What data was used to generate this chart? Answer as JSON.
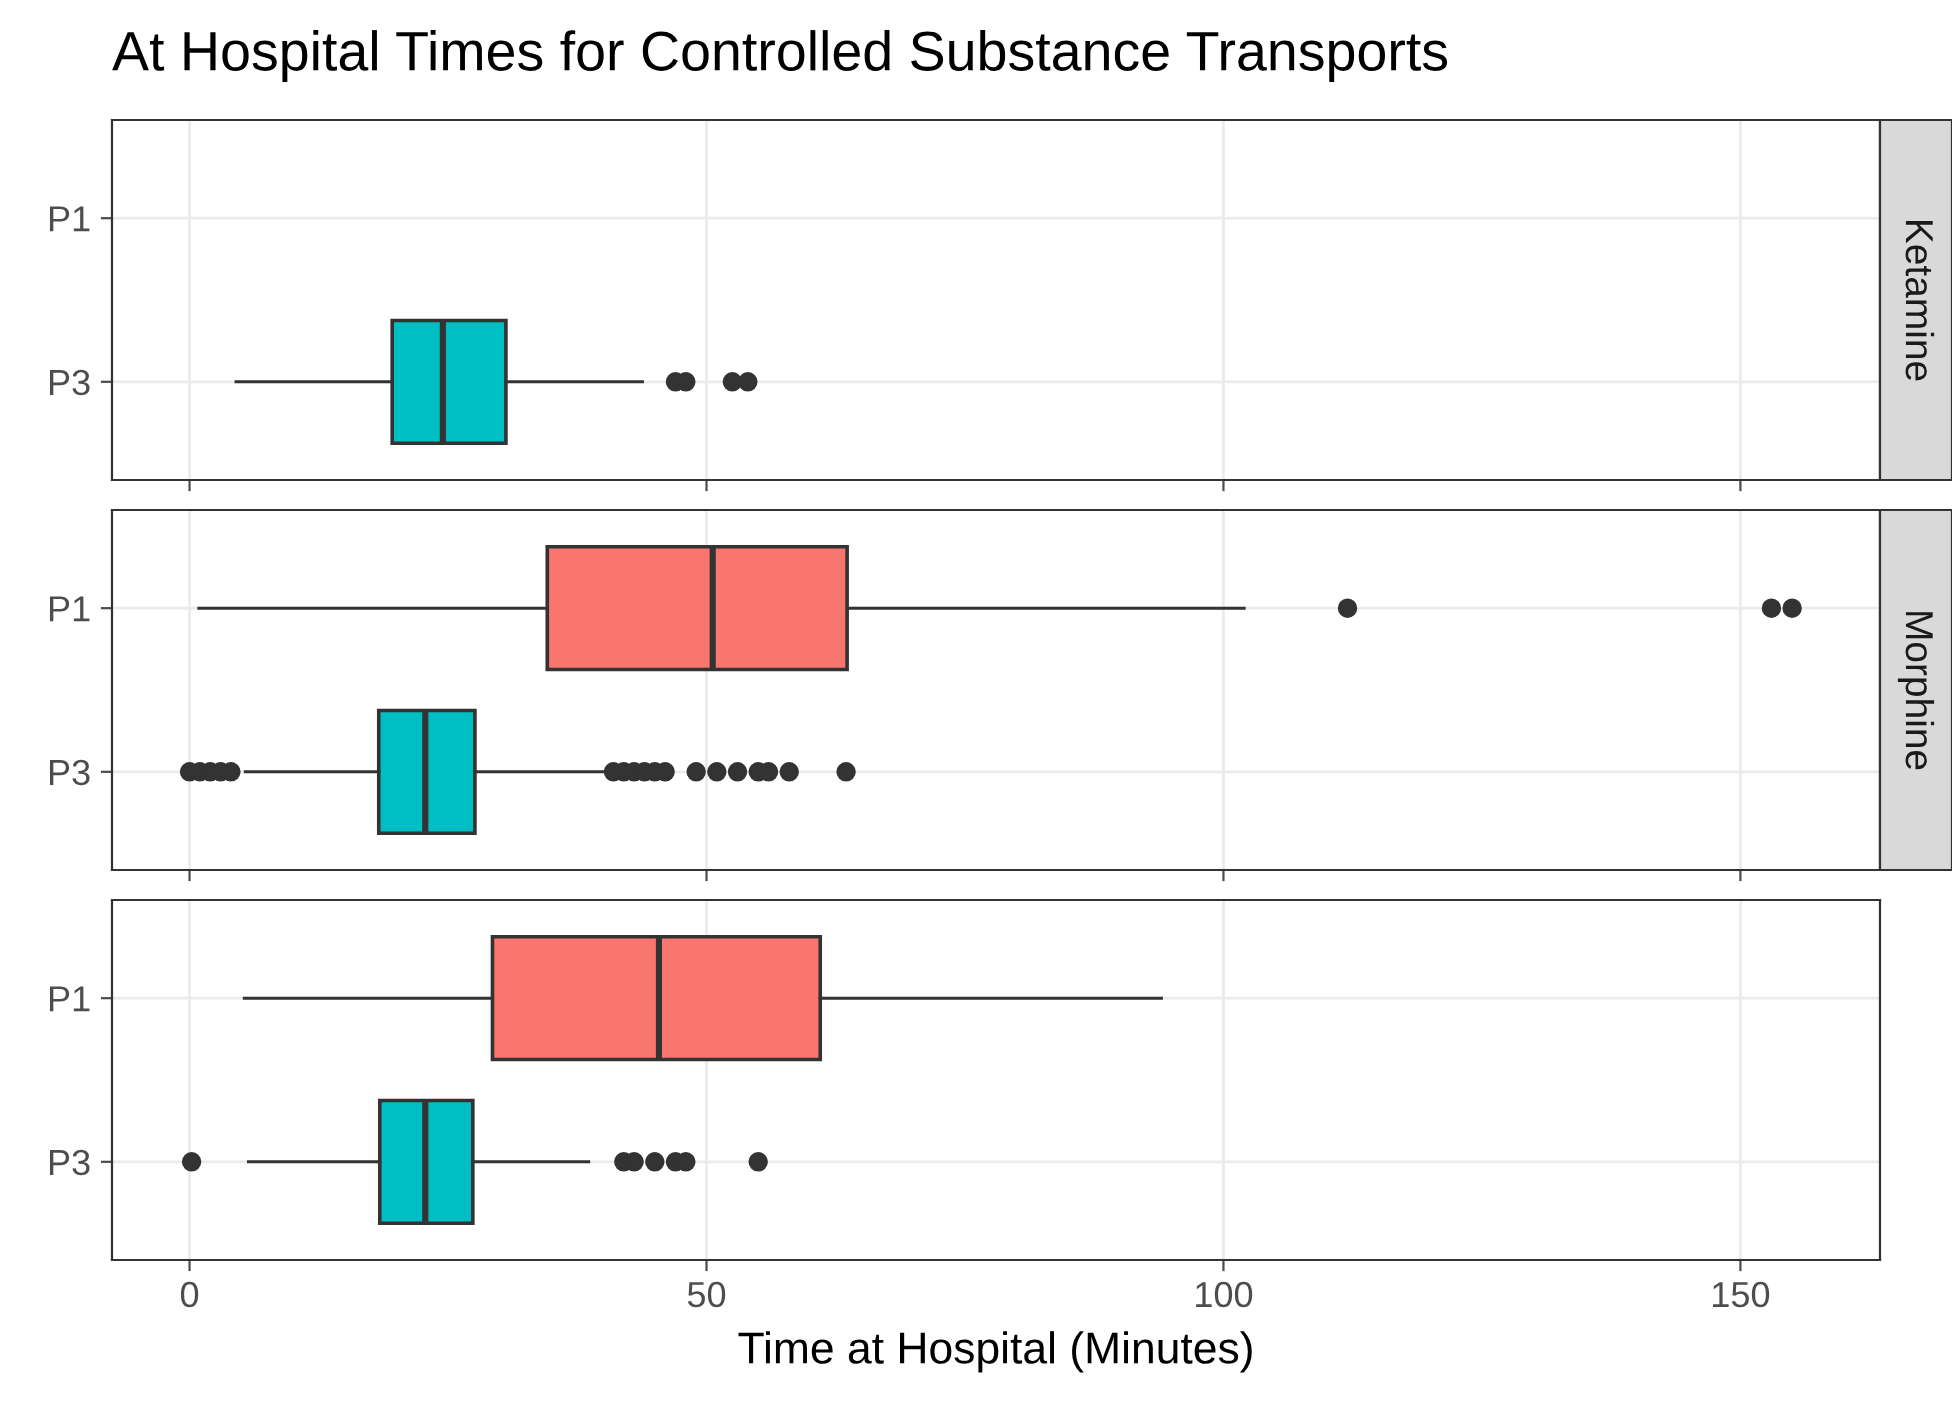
{
  "chart_data": [
    {
      "type": "box",
      "title": "At Hospital Times for Controlled Substance Transports",
      "annotations": [
        "Ketamine"
      ],
      "categories": [
        "P1",
        "P3"
      ],
      "colors": [
        "#f8766d",
        "#00bfc4"
      ],
      "boxes": [
        null,
        {
          "low": 4.5,
          "q1": 19.6,
          "median": 24.5,
          "q3": 30.6,
          "high": 43.8,
          "outliers": [
            47,
            48,
            52.5,
            54
          ]
        }
      ],
      "orientation": "horizontal",
      "xlim": [
        -7.5,
        163.5
      ],
      "xticks": [
        0,
        50,
        100,
        150
      ],
      "tick_labels": "y",
      "grid": true
    },
    {
      "type": "box",
      "annotations": [
        "Morphine"
      ],
      "categories": [
        "P1",
        "P3"
      ],
      "colors": [
        "#f8766d",
        "#00bfc4"
      ],
      "boxes": [
        {
          "low": 0.9,
          "q1": 34.6,
          "median": 50.6,
          "q3": 63.6,
          "high": 102,
          "outliers": [
            112,
            153,
            155
          ]
        },
        {
          "low": 5.4,
          "q1": 18.3,
          "median": 22.8,
          "q3": 27.6,
          "high": 40.5,
          "outliers": [
            0,
            1,
            2,
            3,
            4,
            41,
            42,
            43,
            44,
            45,
            46,
            49,
            51,
            53,
            55,
            56,
            58,
            63.5
          ]
        }
      ],
      "orientation": "horizontal",
      "xlim": [
        -7.5,
        163.5
      ],
      "xticks": [
        0,
        50,
        100,
        150
      ],
      "tick_labels": "y",
      "grid": true
    },
    {
      "type": "box",
      "xlabel": "Time at Hospital (Minutes)",
      "categories": [
        "P1",
        "P3"
      ],
      "colors": [
        "#f8766d",
        "#00bfc4"
      ],
      "boxes": [
        {
          "low": 5.3,
          "q1": 29.3,
          "median": 45.4,
          "q3": 61,
          "high": 94
        },
        {
          "low": 5.7,
          "q1": 18.4,
          "median": 22.8,
          "q3": 27.4,
          "high": 38.6,
          "outliers": [
            0.2,
            42,
            43,
            45,
            47,
            48,
            55
          ]
        }
      ],
      "orientation": "horizontal",
      "xlim": [
        -7.5,
        163.5
      ],
      "xticks": [
        0,
        50,
        100,
        150
      ],
      "grid": true
    }
  ]
}
